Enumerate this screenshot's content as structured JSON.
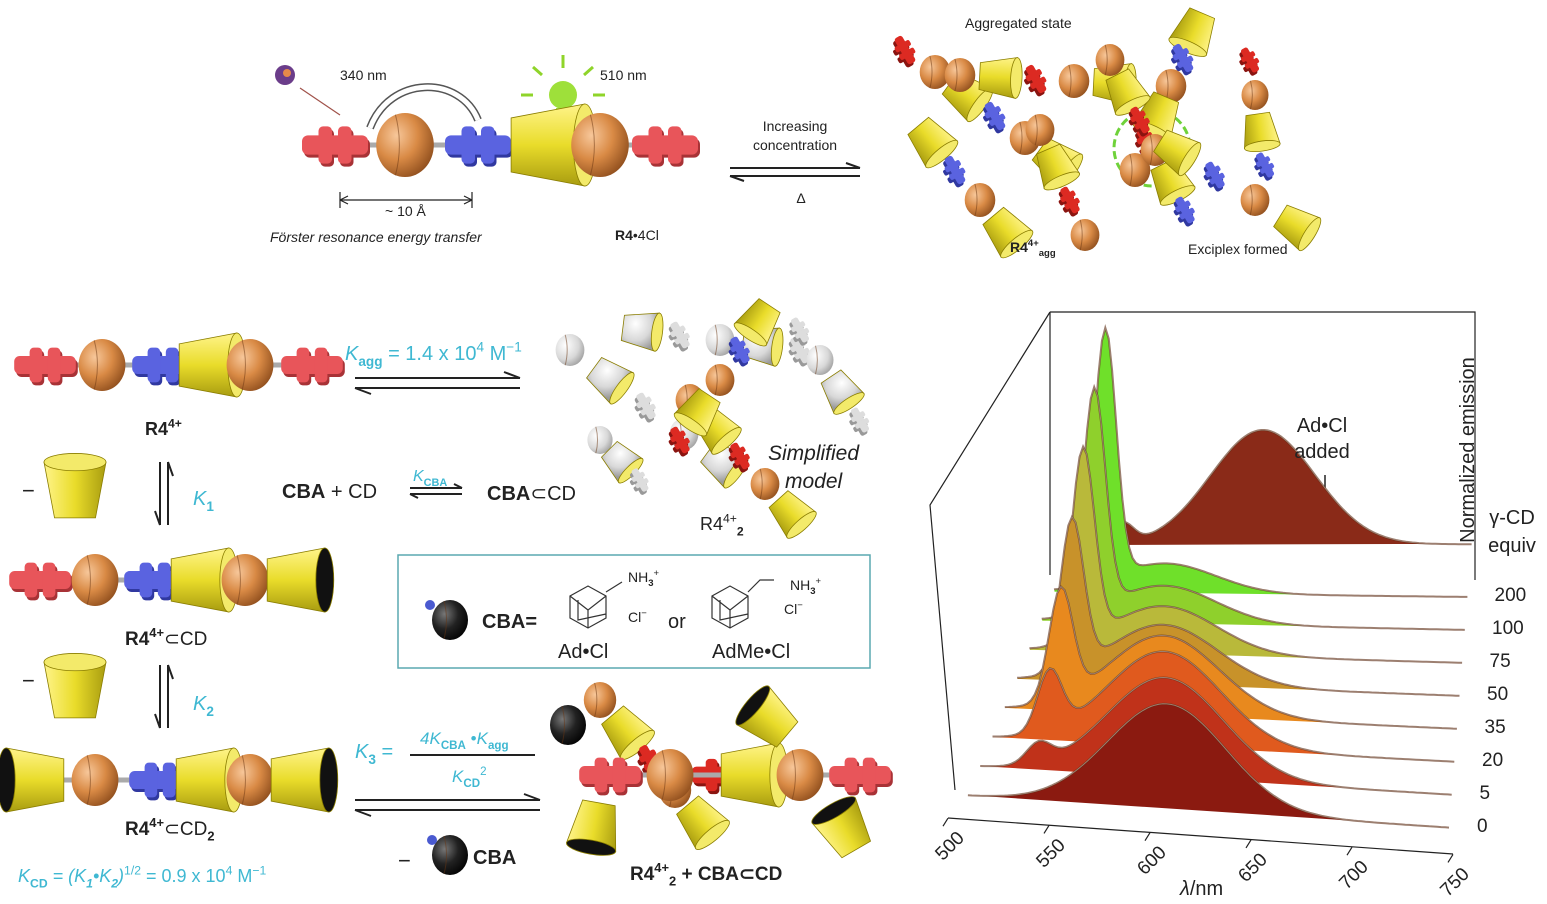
{
  "top": {
    "excitation": "340 nm",
    "emission": "510 nm",
    "distance": "~ 10 Å",
    "fret": "Förster resonance energy transfer",
    "salt": {
      "name": "R4",
      "counterion": "•4Cl"
    },
    "forward": [
      "Increasing",
      "concentration"
    ],
    "reverse": "Δ",
    "aggregated": "Aggregated state",
    "exciplex": "Exciplex formed",
    "agg_label": {
      "name": "R4",
      "charge": "4+",
      "sub": "agg"
    }
  },
  "scheme": {
    "kagg": {
      "k": "K",
      "sub": "agg",
      "text": " = 1.4 x 10",
      "exp": "4",
      "unit": " M",
      "unit_exp": "−1"
    },
    "monomer": {
      "name": "R4",
      "charge": "4+"
    },
    "model": [
      "Simplified",
      "model"
    ],
    "dimer": {
      "name": "R4",
      "charge": "4+",
      "sub": "2"
    },
    "minus": "−",
    "k1": {
      "k": "K",
      "sub": "1"
    },
    "k2": {
      "k": "K",
      "sub": "2"
    },
    "cba_cd": {
      "cba": "CBA",
      "plus": " + CD",
      "k": "K",
      "ksub": "CBA",
      "product": "CBA",
      "incl": "⊂CD"
    },
    "complex1": {
      "name": "R4",
      "charge": "4+",
      "rest": "⊂CD"
    },
    "complex2": {
      "name": "R4",
      "charge": "4+",
      "rest": "⊂CD",
      "sub": "2"
    },
    "box": {
      "cba": "CBA=",
      "nh3": "NH",
      "nh3_sub": "3",
      "nh3_sup": "+",
      "cl": "Cl",
      "cl_sup": "−",
      "or": "or",
      "ad": "Ad•Cl",
      "adme": "AdMe•Cl"
    },
    "k3": {
      "k": "K",
      "sub": "3",
      "eq": " =",
      "num_coef": "4",
      "num_k": "K",
      "num_ksub": "CBA",
      "dot": " •",
      "num_k2": "K",
      "num_k2sub": "agg",
      "den_k": "K",
      "den_sub": "CD",
      "den_sup": "2"
    },
    "cba": "CBA",
    "product": {
      "name": "R4",
      "charge": "4+",
      "sub": "2",
      "rest": " + CBA⊂CD"
    },
    "kcd": {
      "k": "K",
      "sub": "CD",
      "eq": " = (",
      "k1": "K",
      "k1sub": "1",
      "dot": "•",
      "k2": "K",
      "k2sub": "2",
      "close": ")",
      "exp": "1/2",
      "value": " = 0.9 x 10",
      "vexp": "4",
      "unit": " M",
      "unit_exp": "−1"
    }
  },
  "spectra": {
    "xlabel_symbol": "λ",
    "xlabel_unit": "/nm",
    "ylabel": "Normalized emission",
    "series_label": [
      "γ-CD",
      "equiv"
    ],
    "annotation": [
      "Ad•Cl",
      "added"
    ],
    "xticks": [
      500,
      550,
      600,
      650,
      700,
      750
    ],
    "equiv": [
      200,
      100,
      75,
      50,
      35,
      20,
      5,
      0
    ]
  }
}
